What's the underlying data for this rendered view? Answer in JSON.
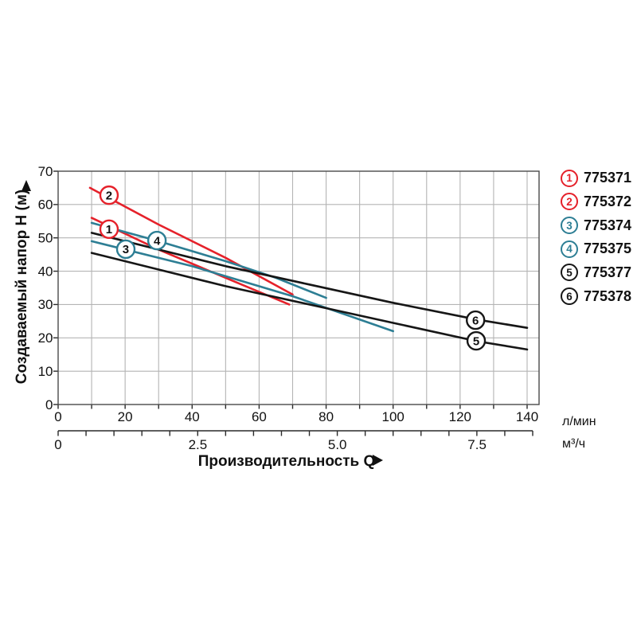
{
  "chart_data": {
    "type": "line",
    "title": "",
    "xlabel": "Производительность Q",
    "ylabel": "Создаваемый напор H (м)",
    "x_axis_arrow_icon": "triangle-right",
    "y_axis_arrow_icon": "triangle-up",
    "x_unit_primary": "л/мин",
    "x_unit_secondary": "м³/ч",
    "x_range_lmin": [
      0,
      143.5
    ],
    "y_range_m": [
      0,
      70
    ],
    "x_gridline_step_lmin": 10,
    "y_gridline_step_m": 10,
    "grid": true,
    "legend_position": "right",
    "x_tick_labels_lmin": [
      "0",
      "20",
      "40",
      "60",
      "80",
      "100",
      "120",
      "140"
    ],
    "x_tick_values_lmin": [
      0,
      20,
      40,
      60,
      80,
      100,
      120,
      140
    ],
    "y_tick_labels": [
      "70",
      "60",
      "50",
      "40",
      "30",
      "20",
      "10",
      "0"
    ],
    "y_tick_values": [
      70,
      60,
      50,
      40,
      30,
      20,
      10,
      0
    ],
    "x_tick_labels_m3h": [
      "0",
      "2.5",
      "5.0",
      "7.5"
    ],
    "x_tick_values_m3h": [
      0,
      2.5,
      5.0,
      7.5
    ],
    "m3h_minor_tick_step": 0.5,
    "series": [
      {
        "label": "1",
        "model": "775371",
        "color": "#e5212a",
        "points_q_h": [
          [
            10,
            56
          ],
          [
            30,
            46.5
          ],
          [
            50,
            38
          ],
          [
            69,
            30
          ]
        ],
        "marker_q_h": [
          15.2,
          52.6
        ]
      },
      {
        "label": "2",
        "model": "775372",
        "color": "#e5212a",
        "points_q_h": [
          [
            9.5,
            65
          ],
          [
            30,
            54
          ],
          [
            50,
            44
          ],
          [
            70,
            33
          ]
        ],
        "marker_q_h": [
          15.2,
          62.8
        ]
      },
      {
        "label": "3",
        "model": "775374",
        "color": "#2d7e94",
        "points_q_h": [
          [
            10,
            49
          ],
          [
            40,
            41.5
          ],
          [
            70,
            32.5
          ],
          [
            100,
            22
          ]
        ],
        "marker_q_h": [
          20.2,
          46.6
        ]
      },
      {
        "label": "4",
        "model": "775375",
        "color": "#2d7e94",
        "points_q_h": [
          [
            10,
            54.5
          ],
          [
            30,
            49
          ],
          [
            50,
            43
          ],
          [
            65,
            38
          ],
          [
            80,
            32
          ]
        ],
        "marker_q_h": [
          29.5,
          49.2
        ]
      },
      {
        "label": "5",
        "model": "775377",
        "color": "#161616",
        "points_q_h": [
          [
            10,
            45.5
          ],
          [
            30,
            40.5
          ],
          [
            50,
            35.5
          ],
          [
            75,
            30
          ],
          [
            100,
            24.5
          ],
          [
            125,
            19
          ],
          [
            140,
            16.5
          ]
        ],
        "marker_q_h": [
          124.8,
          19.1
        ]
      },
      {
        "label": "6",
        "model": "775378",
        "color": "#161616",
        "points_q_h": [
          [
            10,
            51.5
          ],
          [
            30,
            46.5
          ],
          [
            50,
            41.5
          ],
          [
            75,
            36
          ],
          [
            100,
            30.5
          ],
          [
            125,
            25.5
          ],
          [
            140,
            23
          ]
        ],
        "marker_q_h": [
          124.6,
          25.3
        ]
      }
    ]
  },
  "style_colors": {
    "red_series": "#e5212a",
    "teal_series": "#2d7e94",
    "black_series": "#161616",
    "gridline": "#b4b4b4",
    "plot_border": "#4a4a4a",
    "axis": "#2a2a2a",
    "text": "#111111"
  }
}
